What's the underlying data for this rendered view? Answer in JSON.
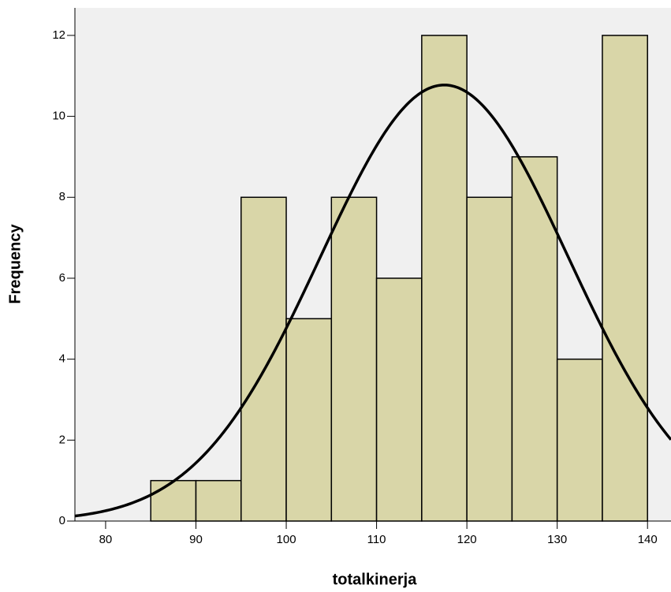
{
  "chart_data": {
    "type": "histogram",
    "x_label": "totalkinerja",
    "y_label": "Frequency",
    "bins": [
      85,
      90,
      95,
      100,
      105,
      110,
      115,
      120,
      125,
      130,
      135,
      140
    ],
    "counts": [
      1,
      1,
      8,
      5,
      8,
      6,
      12,
      8,
      9,
      4,
      12
    ],
    "color": "#d9d6a8",
    "normal_curve": {
      "mean": 117.5,
      "std": 13.7
    },
    "xlim": [
      76.6,
      142.6
    ],
    "ylim": [
      0,
      12.68
    ],
    "xticks": [
      80,
      90,
      100,
      110,
      120,
      130,
      140
    ],
    "yticks": [
      0,
      2,
      4,
      6,
      8,
      10,
      12
    ]
  }
}
